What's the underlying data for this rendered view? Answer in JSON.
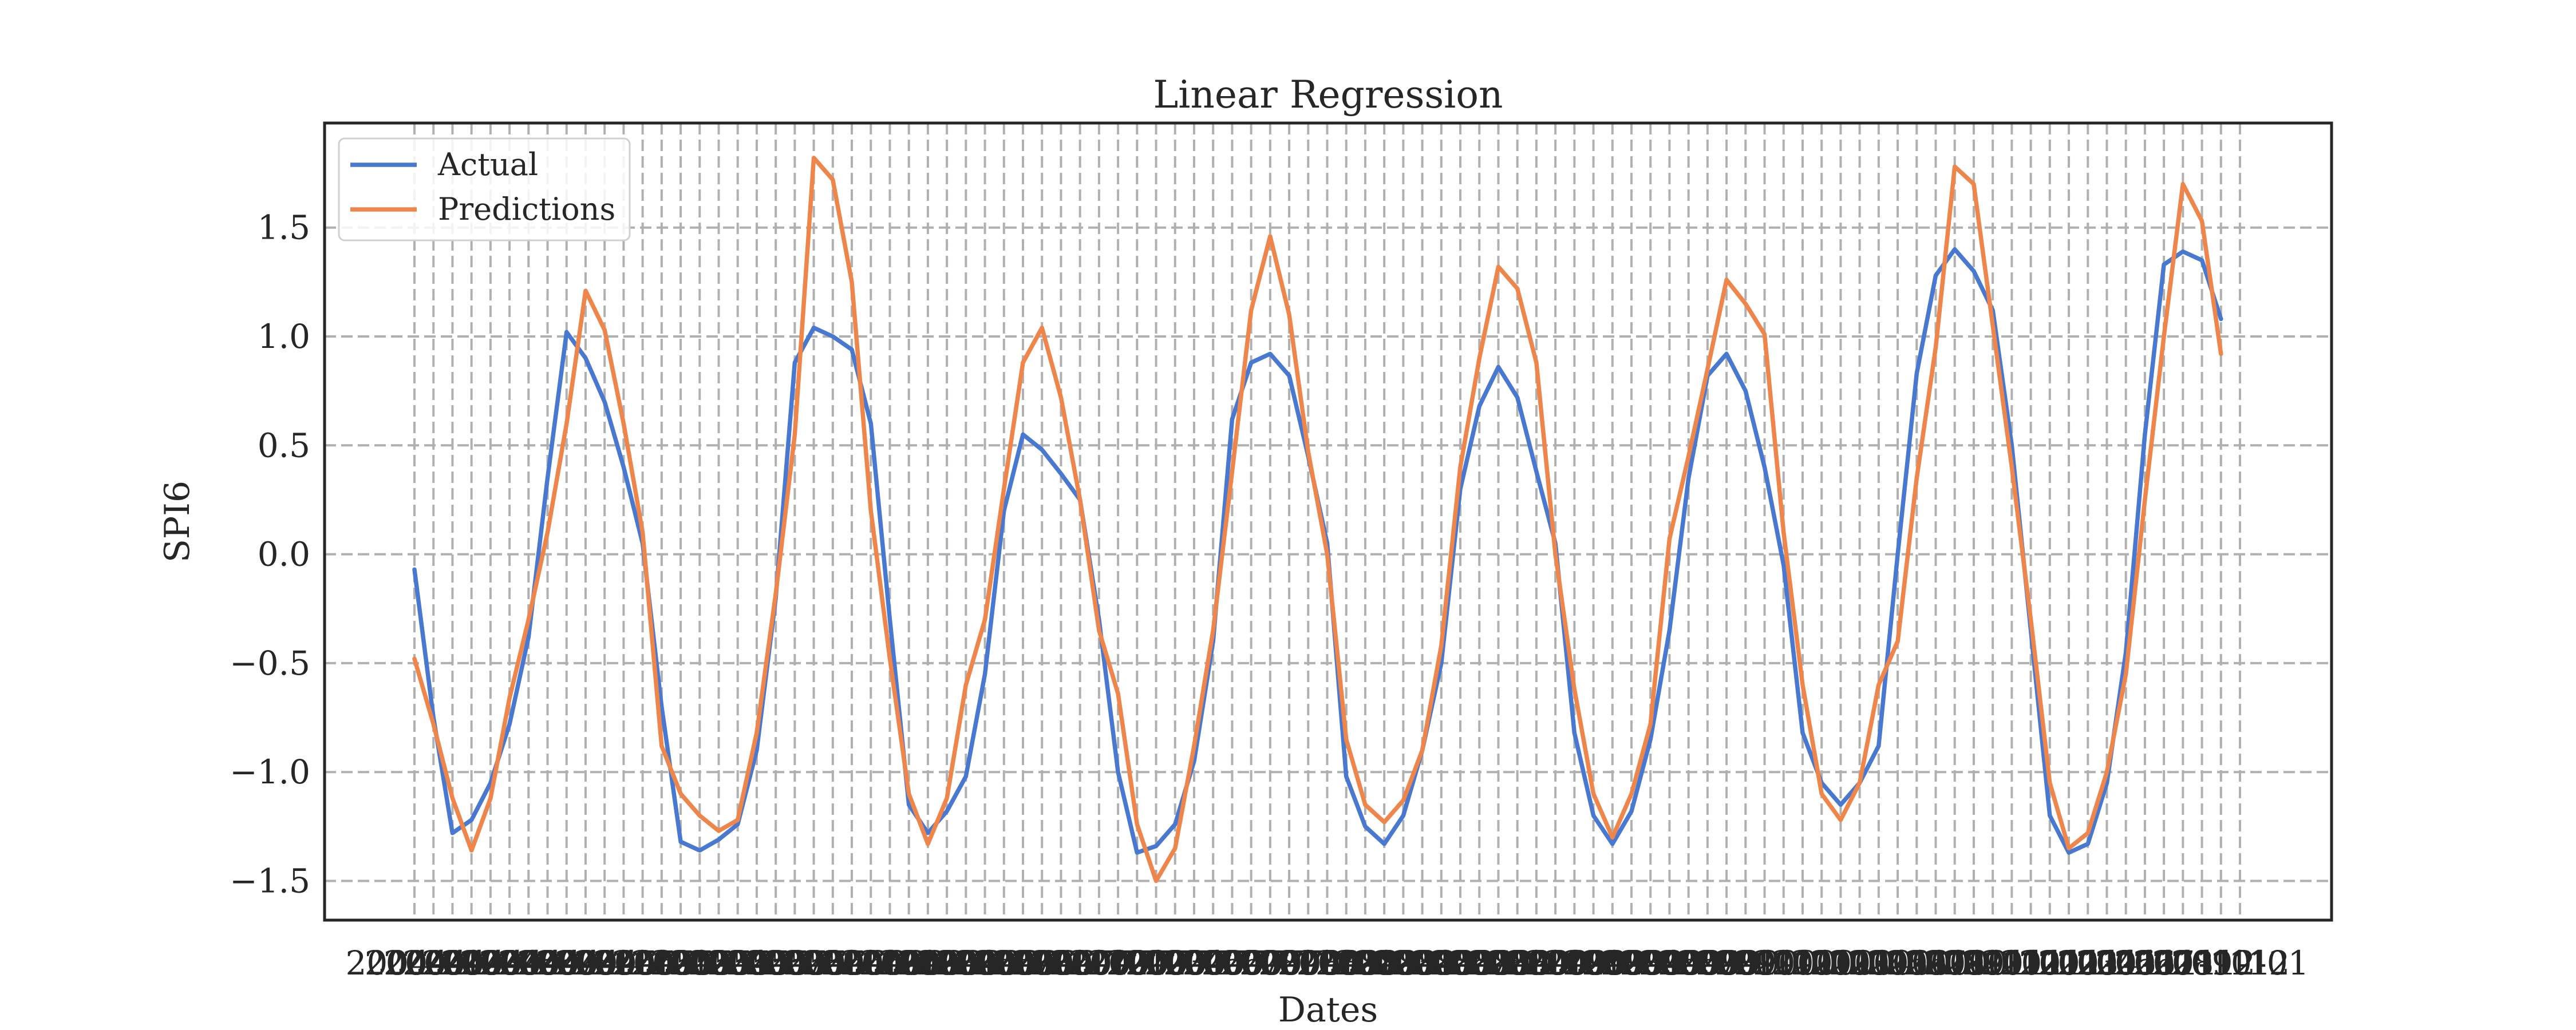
{
  "chart_data": {
    "type": "line",
    "title": "Linear Regression",
    "xlabel": "Dates",
    "ylabel": "SPI6",
    "ylim": [
      -1.68,
      1.98
    ],
    "yticks": [
      -1.5,
      -1.0,
      -0.5,
      0.0,
      0.5,
      1.0,
      1.5
    ],
    "ytick_labels": [
      "−1.5",
      "−1.0",
      "−0.5",
      "0.0",
      "0.5",
      "1.0",
      "1.5"
    ],
    "x_start": "2004-01",
    "x_tick_labels": [
      "2004-01",
      "2004-02",
      "2004-03",
      "2004-04",
      "2004-05",
      "2004-06",
      "2004-07",
      "2004-08",
      "2004-09",
      "2004-10",
      "2004-11",
      "2004-12",
      "2005-01",
      "2005-02",
      "2005-03",
      "2005-04",
      "2005-05",
      "2005-06",
      "2005-07",
      "2005-08",
      "2005-09",
      "2005-10",
      "2005-11",
      "2005-12",
      "2006-01",
      "2006-02",
      "2006-03",
      "2006-04",
      "2006-05",
      "2006-06",
      "2006-07",
      "2006-08",
      "2006-09",
      "2006-10",
      "2006-11",
      "2006-12",
      "2007-01",
      "2007-02",
      "2007-03",
      "2007-04",
      "2007-05",
      "2007-06",
      "2007-07",
      "2007-08",
      "2007-09",
      "2007-10",
      "2007-11",
      "2007-12",
      "2008-01",
      "2008-02",
      "2008-03",
      "2008-04",
      "2008-05",
      "2008-06",
      "2008-07",
      "2008-08",
      "2008-09",
      "2008-10",
      "2008-11",
      "2008-12",
      "2009-01",
      "2009-02",
      "2009-03",
      "2009-04",
      "2009-05",
      "2009-06",
      "2009-07",
      "2009-08",
      "2009-09",
      "2009-10",
      "2009-11",
      "2009-12",
      "2010-01",
      "2010-02",
      "2010-03",
      "2010-04",
      "2010-05",
      "2010-06",
      "2010-07",
      "2010-08",
      "2010-09",
      "2010-10",
      "2010-11",
      "2010-12",
      "2011-01",
      "2011-02",
      "2011-03",
      "2011-04",
      "2011-05",
      "2011-06",
      "2011-07",
      "2011-08",
      "2011-09",
      "2011-10",
      "2011-11",
      "2011-12",
      "2012-01"
    ],
    "grid": true,
    "legend_placement": "top-left",
    "series": [
      {
        "name": "Actual",
        "color": "#4878cf",
        "values": [
          -0.07,
          -0.75,
          -1.28,
          -1.22,
          -1.05,
          -0.78,
          -0.38,
          0.35,
          1.02,
          0.9,
          0.7,
          0.4,
          0.05,
          -0.7,
          -1.32,
          -1.36,
          -1.31,
          -1.24,
          -0.9,
          -0.2,
          0.88,
          1.04,
          1.0,
          0.94,
          0.6,
          -0.3,
          -1.15,
          -1.28,
          -1.18,
          -1.02,
          -0.55,
          0.2,
          0.55,
          0.48,
          0.37,
          0.25,
          -0.3,
          -1.0,
          -1.37,
          -1.34,
          -1.24,
          -0.95,
          -0.4,
          0.62,
          0.88,
          0.92,
          0.82,
          0.45,
          0.05,
          -1.02,
          -1.25,
          -1.33,
          -1.2,
          -0.9,
          -0.5,
          0.3,
          0.68,
          0.86,
          0.72,
          0.38,
          0.05,
          -0.82,
          -1.2,
          -1.33,
          -1.18,
          -0.85,
          -0.35,
          0.35,
          0.82,
          0.92,
          0.75,
          0.4,
          -0.05,
          -0.82,
          -1.05,
          -1.15,
          -1.05,
          -0.88,
          0.0,
          0.83,
          1.28,
          1.4,
          1.3,
          1.12,
          0.5,
          -0.35,
          -1.2,
          -1.37,
          -1.33,
          -1.05,
          -0.45,
          0.55,
          1.33,
          1.39,
          1.35,
          1.08
        ]
      },
      {
        "name": "Predictions",
        "color": "#ee854a",
        "values": [
          -0.48,
          -0.78,
          -1.12,
          -1.36,
          -1.12,
          -0.66,
          -0.3,
          0.1,
          0.6,
          1.21,
          1.03,
          0.6,
          0.1,
          -0.88,
          -1.1,
          -1.2,
          -1.27,
          -1.22,
          -0.82,
          -0.18,
          0.55,
          1.82,
          1.72,
          1.25,
          0.2,
          -0.48,
          -1.1,
          -1.33,
          -1.12,
          -0.6,
          -0.3,
          0.3,
          0.88,
          1.04,
          0.72,
          0.25,
          -0.35,
          -0.64,
          -1.24,
          -1.5,
          -1.35,
          -0.88,
          -0.35,
          0.38,
          1.12,
          1.46,
          1.1,
          0.47,
          0.0,
          -0.85,
          -1.15,
          -1.23,
          -1.13,
          -0.9,
          -0.42,
          0.4,
          0.9,
          1.32,
          1.22,
          0.88,
          0.0,
          -0.62,
          -1.1,
          -1.3,
          -1.1,
          -0.78,
          0.07,
          0.45,
          0.85,
          1.26,
          1.15,
          1.01,
          0.1,
          -0.6,
          -1.1,
          -1.22,
          -1.05,
          -0.6,
          -0.4,
          0.35,
          0.95,
          1.78,
          1.7,
          1.05,
          0.4,
          -0.3,
          -1.05,
          -1.35,
          -1.28,
          -1.0,
          -0.55,
          0.25,
          1.0,
          1.7,
          1.53,
          0.92
        ]
      }
    ]
  }
}
